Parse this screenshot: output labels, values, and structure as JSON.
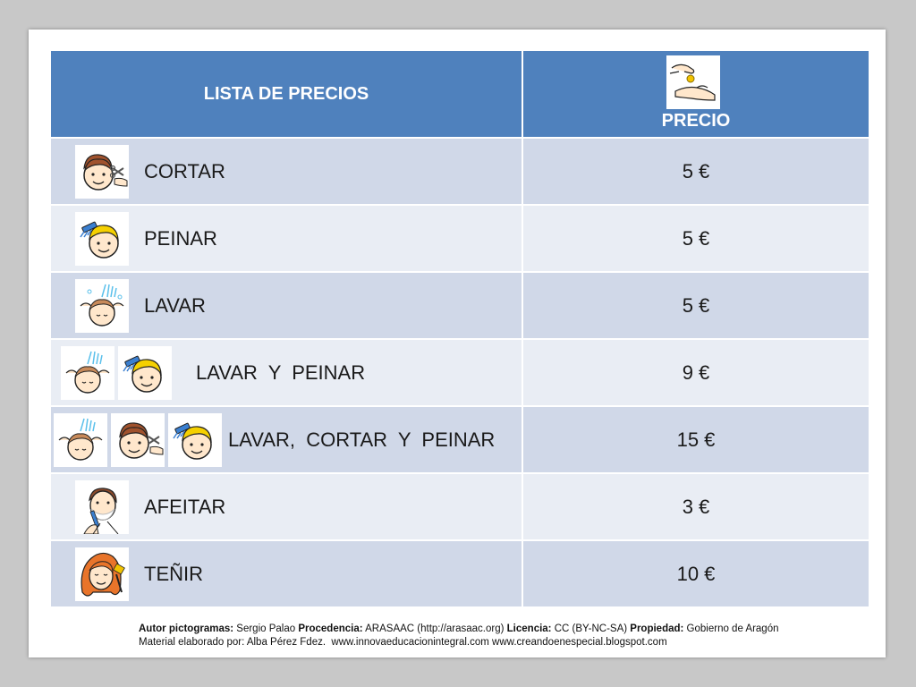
{
  "table": {
    "header": {
      "service": "LISTA DE PRECIOS",
      "price": "PRECIO"
    },
    "rows": [
      {
        "label": "CORTAR",
        "price": "5 €",
        "icons": [
          "haircut-pictogram-icon"
        ]
      },
      {
        "label": "PEINAR",
        "price": "5 €",
        "icons": [
          "comb-pictogram-icon"
        ]
      },
      {
        "label": "LAVAR",
        "price": "5 €",
        "icons": [
          "hair-wash-pictogram-icon"
        ]
      },
      {
        "label": "LAVAR  Y  PEINAR",
        "price": "9 €",
        "icons": [
          "hair-wash-pictogram-icon",
          "comb-pictogram-icon"
        ]
      },
      {
        "label": "LAVAR,  CORTAR  Y  PEINAR",
        "price": "15 €",
        "icons": [
          "hair-wash-pictogram-icon",
          "haircut-pictogram-icon",
          "comb-pictogram-icon"
        ]
      },
      {
        "label": "AFEITAR",
        "price": "3 €",
        "icons": [
          "shave-pictogram-icon"
        ]
      },
      {
        "label": "TEÑIR",
        "price": "10 €",
        "icons": [
          "hair-dye-pictogram-icon"
        ]
      }
    ]
  },
  "credits": {
    "line1": {
      "author_label": "Autor pictogramas:",
      "author": "Sergio Palao",
      "source_label": "Procedencia:",
      "source": "ARASAAC (http://arasaac.org)",
      "license_label": "Licencia:",
      "license": "CC (BY-NC-SA)",
      "owner_label": "Propiedad:",
      "owner": "Gobierno de Aragón"
    },
    "line2": "Material elaborado por: Alba Pérez Fdez.  www.innovaeducacionintegral.com www.creandoenespecial.blogspot.com"
  },
  "colors": {
    "header_blue": "#4f81bd",
    "row_dark": "#d0d8e8",
    "row_light": "#e9edf4",
    "background": "#c8c8c8"
  }
}
